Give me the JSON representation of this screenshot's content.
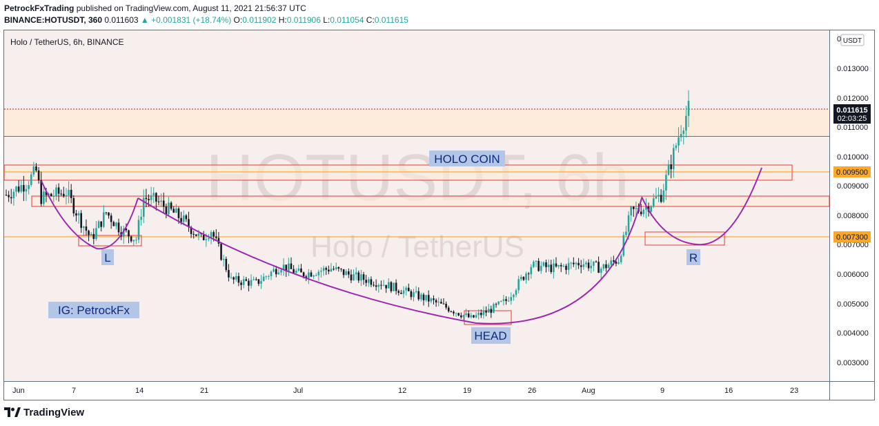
{
  "header": {
    "author": "PetrockFxTrading",
    "published_text": "published on TradingView.com, August 11, 2021 21:56:37 UTC",
    "symbol_line": "BINANCE:HOTUSDT, 360",
    "last_price": "0.011603",
    "change": "▲ +0.001831 (+18.74%)",
    "o_label": "O:",
    "o_value": "0.011902",
    "h_label": "H:",
    "h_value": "0.011906",
    "l_label": "L:",
    "l_value": "0.011054",
    "c_label": "C:",
    "c_value": "0.011615"
  },
  "chart": {
    "pane_title": "Holo / TetherUS, 6h, BINANCE",
    "watermark_symbol": "HOTUSDT, 6h",
    "watermark_name": "Holo / TetherUS",
    "currency_badge": "USDT",
    "annotations": {
      "holo_coin": "HOLO COIN",
      "left_shoulder": "L",
      "head": "HEAD",
      "right_shoulder": "R",
      "instagram": "IG: PetrockFx"
    },
    "price_axis": [
      "0.013000",
      "0.012000",
      "0.011000",
      "0.010000",
      "0.009000",
      "0.008000",
      "0.007000",
      "0.006000",
      "0.005000",
      "0.004000",
      "0.003000"
    ],
    "axis_top_label": "0.",
    "price_labels": {
      "current_price": "0.011615",
      "countdown": "02:03:25",
      "level_1": "0.009500",
      "level_2": "0.007300"
    },
    "time_axis": [
      "Jun",
      "7",
      "14",
      "21",
      "Jul",
      "12",
      "19",
      "26",
      "Aug",
      "9",
      "16",
      "23"
    ],
    "colors": {
      "background": "#f7eeee",
      "up_candle": "#26a69a",
      "down_candle": "#131722",
      "zone_fill": "#fdebdb",
      "zone_border": "#e53935",
      "level_line": "#ff9800",
      "pattern_curve": "#9c27b0",
      "label_box": "#b4c6e7",
      "label_text": "#0d2b7a",
      "price_label_bg": "#ffa726",
      "current_label_bg": "#131722"
    }
  },
  "chart_data": {
    "type": "candlestick",
    "x_unit": "6h bars",
    "y_range": [
      0.0026,
      0.0141
    ],
    "anchors_approx": [
      [
        0,
        0.0087
      ],
      [
        8,
        0.0091
      ],
      [
        12,
        0.0095
      ],
      [
        14,
        0.0086
      ],
      [
        24,
        0.0088
      ],
      [
        30,
        0.0078
      ],
      [
        34,
        0.0072
      ],
      [
        40,
        0.0081
      ],
      [
        46,
        0.0075
      ],
      [
        52,
        0.0072
      ],
      [
        55,
        0.0086
      ],
      [
        60,
        0.0085
      ],
      [
        70,
        0.0079
      ],
      [
        78,
        0.0072
      ],
      [
        82,
        0.0075
      ],
      [
        90,
        0.0058
      ],
      [
        100,
        0.0057
      ],
      [
        110,
        0.0063
      ],
      [
        118,
        0.006
      ],
      [
        130,
        0.0062
      ],
      [
        140,
        0.0059
      ],
      [
        150,
        0.0057
      ],
      [
        160,
        0.0054
      ],
      [
        170,
        0.0051
      ],
      [
        178,
        0.0048
      ],
      [
        186,
        0.0045
      ],
      [
        194,
        0.0048
      ],
      [
        200,
        0.0051
      ],
      [
        210,
        0.0063
      ],
      [
        220,
        0.0062
      ],
      [
        230,
        0.0064
      ],
      [
        238,
        0.0062
      ],
      [
        245,
        0.0065
      ],
      [
        250,
        0.0081
      ],
      [
        256,
        0.0083
      ],
      [
        262,
        0.0087
      ],
      [
        266,
        0.0098
      ],
      [
        270,
        0.011
      ],
      [
        273,
        0.0116
      ]
    ]
  }
}
